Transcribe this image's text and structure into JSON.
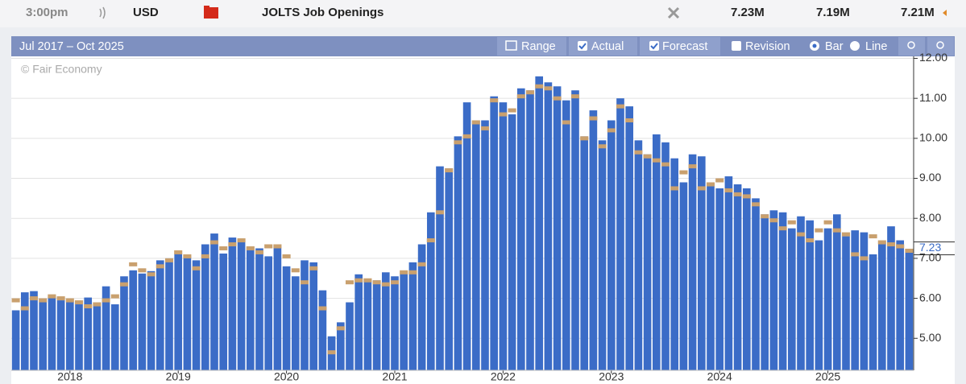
{
  "header": {
    "time": "3:00pm",
    "currency": "USD",
    "event": "JOLTS Job Openings",
    "actual": "7.23M",
    "forecast": "7.19M",
    "previous": "7.21M"
  },
  "toolbar": {
    "range_text": "Jul 2017 – Oct 2025",
    "range_button": "Range",
    "revision": "Revision",
    "bar": "Bar",
    "line": "Line"
  },
  "chart_data": {
    "type": "bar",
    "watermark": "© Fair Economy",
    "categories": [
      null,
      null,
      null,
      null,
      null,
      null,
      "2018",
      null,
      null,
      null,
      null,
      null,
      null,
      null,
      null,
      null,
      null,
      null,
      "2019",
      null,
      null,
      null,
      null,
      null,
      null,
      null,
      null,
      null,
      null,
      null,
      "2020",
      null,
      null,
      null,
      null,
      null,
      null,
      null,
      null,
      null,
      null,
      null,
      "2021",
      null,
      null,
      null,
      null,
      null,
      null,
      null,
      null,
      null,
      null,
      null,
      "2022",
      null,
      null,
      null,
      null,
      null,
      null,
      null,
      null,
      null,
      null,
      null,
      "2023",
      null,
      null,
      null,
      null,
      null,
      null,
      null,
      null,
      null,
      null,
      null,
      "2024",
      null,
      null,
      null,
      null,
      null,
      null,
      null,
      null,
      null,
      null,
      null,
      "2025",
      null,
      null,
      null,
      null,
      null,
      null,
      null,
      null,
      null
    ],
    "series": [
      {
        "name": "Actual",
        "color": "#3b6cc7",
        "values": [
          5.7,
          6.15,
          6.18,
          5.98,
          6.08,
          5.95,
          5.92,
          5.85,
          6.02,
          5.8,
          6.3,
          5.85,
          6.55,
          6.7,
          6.62,
          6.68,
          6.95,
          7.0,
          7.13,
          7.05,
          6.95,
          7.35,
          7.62,
          7.12,
          7.52,
          7.4,
          7.3,
          7.25,
          7.05,
          7.27,
          6.8,
          6.55,
          6.95,
          6.9,
          6.2,
          5.05,
          5.4,
          5.9,
          6.6,
          6.45,
          6.45,
          6.65,
          6.55,
          6.65,
          6.9,
          7.35,
          8.15,
          9.3,
          9.25,
          10.05,
          10.9,
          10.45,
          10.45,
          11.05,
          10.9,
          10.6,
          11.25,
          11.2,
          11.55,
          11.4,
          11.3,
          10.95,
          11.2,
          10.05,
          10.7,
          9.95,
          10.45,
          11.0,
          10.8,
          9.95,
          9.6,
          10.1,
          9.9,
          9.5,
          8.9,
          9.6,
          9.55,
          8.8,
          8.75,
          9.05,
          8.85,
          8.75,
          8.5,
          8.1,
          8.2,
          8.15,
          7.75,
          8.05,
          7.95,
          7.45,
          7.75,
          8.1,
          7.55,
          7.7,
          7.65,
          7.1,
          7.4,
          7.8,
          7.45,
          7.23
        ]
      },
      {
        "name": "Forecast",
        "color": "#c9a06e",
        "values": [
          5.95,
          5.75,
          6.0,
          5.95,
          6.05,
          6.0,
          5.95,
          5.9,
          5.8,
          5.85,
          5.95,
          6.05,
          6.35,
          6.85,
          6.7,
          6.6,
          6.8,
          6.95,
          7.15,
          7.05,
          6.75,
          7.05,
          7.4,
          7.25,
          7.35,
          7.45,
          7.25,
          7.15,
          7.3,
          7.3,
          7.05,
          6.7,
          6.4,
          6.75,
          5.75,
          4.65,
          5.25,
          6.4,
          6.45,
          6.45,
          6.4,
          6.35,
          6.4,
          6.65,
          6.65,
          6.85,
          7.45,
          8.15,
          9.2,
          9.9,
          10.05,
          10.4,
          10.25,
          10.95,
          10.6,
          10.7,
          11.05,
          11.15,
          11.3,
          11.25,
          11.0,
          10.4,
          11.05,
          10.0,
          10.5,
          9.8,
          10.2,
          10.8,
          10.45,
          9.65,
          9.55,
          9.45,
          9.35,
          8.75,
          9.15,
          9.3,
          8.75,
          8.85,
          8.95,
          8.7,
          8.6,
          8.55,
          8.35,
          8.05,
          7.95,
          7.75,
          7.9,
          7.6,
          7.45,
          7.7,
          7.9,
          7.7,
          7.6,
          7.1,
          7.0,
          7.55,
          7.4,
          7.35,
          7.3,
          7.19
        ]
      }
    ],
    "ylim": [
      4.2,
      12.05
    ],
    "yticks": [
      {
        "value": 5,
        "label": "5.00"
      },
      {
        "value": 6,
        "label": "6.00"
      },
      {
        "value": 7,
        "label": "7.00"
      },
      {
        "value": 8,
        "label": "8.00"
      },
      {
        "value": 9,
        "label": "9.00"
      },
      {
        "value": 10,
        "label": "10.00"
      },
      {
        "value": 11,
        "label": "11.00"
      },
      {
        "value": 12,
        "label": "12.00"
      }
    ],
    "grid": true,
    "y_axis_side": "right"
  }
}
